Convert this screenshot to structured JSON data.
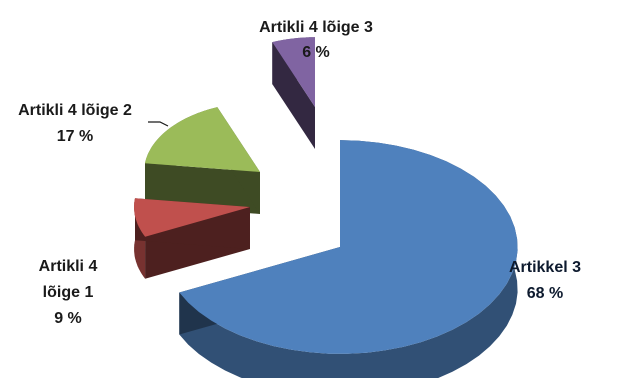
{
  "chart_data": {
    "type": "pie",
    "title": "",
    "style": "3d-exploded",
    "slices": [
      {
        "name": "Artikkel 3",
        "label_lines": [
          "Artikkel 3"
        ],
        "value": 68,
        "value_label": "68 %",
        "color": "#4f81bd"
      },
      {
        "name": "Artikli 4 lõige 1",
        "label_lines": [
          "Artikli 4",
          "lõige 1"
        ],
        "value": 9,
        "value_label": "9 %",
        "color": "#c0504d"
      },
      {
        "name": "Artikli 4 lõige 2",
        "label_lines": [
          "Artikli 4 lõige 2"
        ],
        "value": 17,
        "value_label": "17 %",
        "color": "#9bbb59"
      },
      {
        "name": "Artikli 4 lõige 3",
        "label_lines": [
          "Artikli 4 lõige 3"
        ],
        "value": 6,
        "value_label": "6 %",
        "color": "#8064a2"
      }
    ],
    "legend": "none"
  }
}
